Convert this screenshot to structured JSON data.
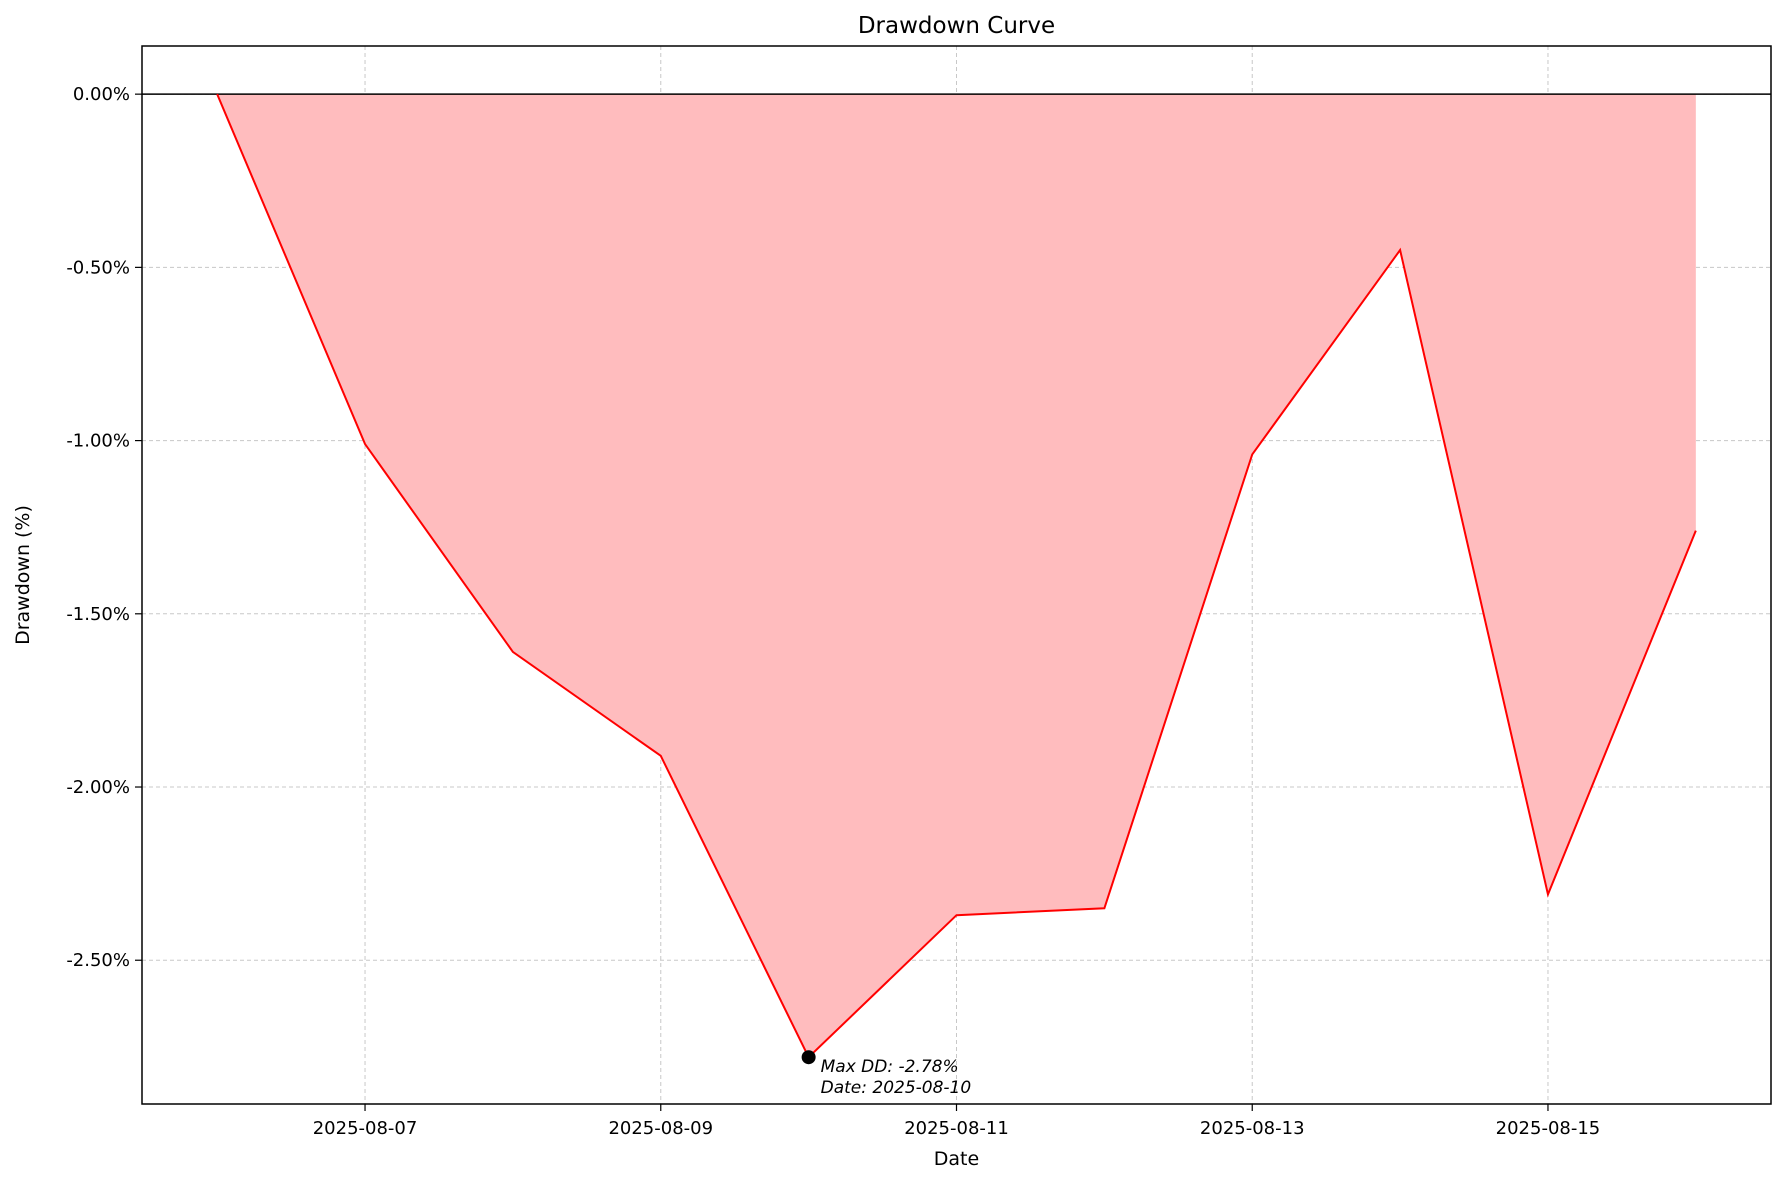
{
  "chart_data": {
    "type": "area",
    "title": "Drawdown Curve",
    "xlabel": "Date",
    "ylabel": "Drawdown (%)",
    "x": [
      "2025-08-06",
      "2025-08-07",
      "2025-08-08",
      "2025-08-09",
      "2025-08-10",
      "2025-08-11",
      "2025-08-12",
      "2025-08-13",
      "2025-08-14",
      "2025-08-15",
      "2025-08-16"
    ],
    "series": [
      {
        "values": [
          0.0,
          -1.01,
          -1.61,
          -1.91,
          -2.78,
          -2.37,
          -2.35,
          -1.04,
          -0.45,
          -2.31,
          -1.26
        ],
        "color": "#ff0000",
        "fill": "#ffbcbe"
      }
    ],
    "xlim": [
      "2025-08-05T11:48",
      "2025-08-16T12:12"
    ],
    "ylim": [
      -2.915,
      0.139
    ],
    "yticks": [
      0.0,
      -0.5,
      -1.0,
      -1.5,
      -2.0,
      -2.5
    ],
    "ytick_labels": [
      "0.00%",
      "-0.50%",
      "-1.00%",
      "-1.50%",
      "-2.00%",
      "-2.50%"
    ],
    "xticks": [
      "2025-08-07",
      "2025-08-09",
      "2025-08-11",
      "2025-08-13",
      "2025-08-15"
    ],
    "xtick_labels": [
      "2025-08-07",
      "2025-08-09",
      "2025-08-11",
      "2025-08-13",
      "2025-08-15"
    ],
    "reference_line": 0.0,
    "grid": true,
    "annotation": {
      "x": "2025-08-10",
      "y": -2.78,
      "line1": "Max DD: -2.78%",
      "line2": "Date: 2025-08-10",
      "marker_color": "#000000"
    }
  }
}
